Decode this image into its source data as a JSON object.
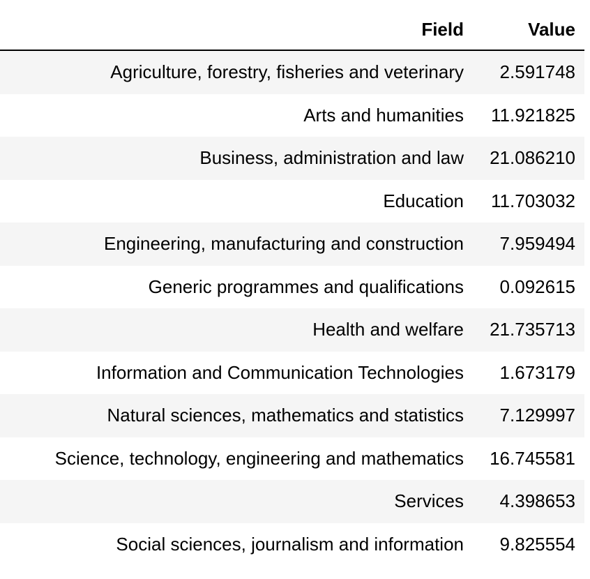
{
  "table": {
    "headers": [
      "Field",
      "Value"
    ],
    "rows": [
      {
        "field": "Agriculture, forestry, fisheries and veterinary",
        "value": "2.591748"
      },
      {
        "field": "Arts and humanities",
        "value": "11.921825"
      },
      {
        "field": "Business, administration and law",
        "value": "21.086210"
      },
      {
        "field": "Education",
        "value": "11.703032"
      },
      {
        "field": "Engineering, manufacturing and construction",
        "value": "7.959494"
      },
      {
        "field": "Generic programmes and qualifications",
        "value": "0.092615"
      },
      {
        "field": "Health and welfare",
        "value": "21.735713"
      },
      {
        "field": "Information and Communication Technologies",
        "value": "1.673179"
      },
      {
        "field": "Natural sciences, mathematics and statistics",
        "value": "7.129997"
      },
      {
        "field": "Science, technology, engineering and mathematics",
        "value": "16.745581"
      },
      {
        "field": "Services",
        "value": "4.398653"
      },
      {
        "field": "Social sciences, journalism and information",
        "value": "9.825554"
      }
    ]
  }
}
